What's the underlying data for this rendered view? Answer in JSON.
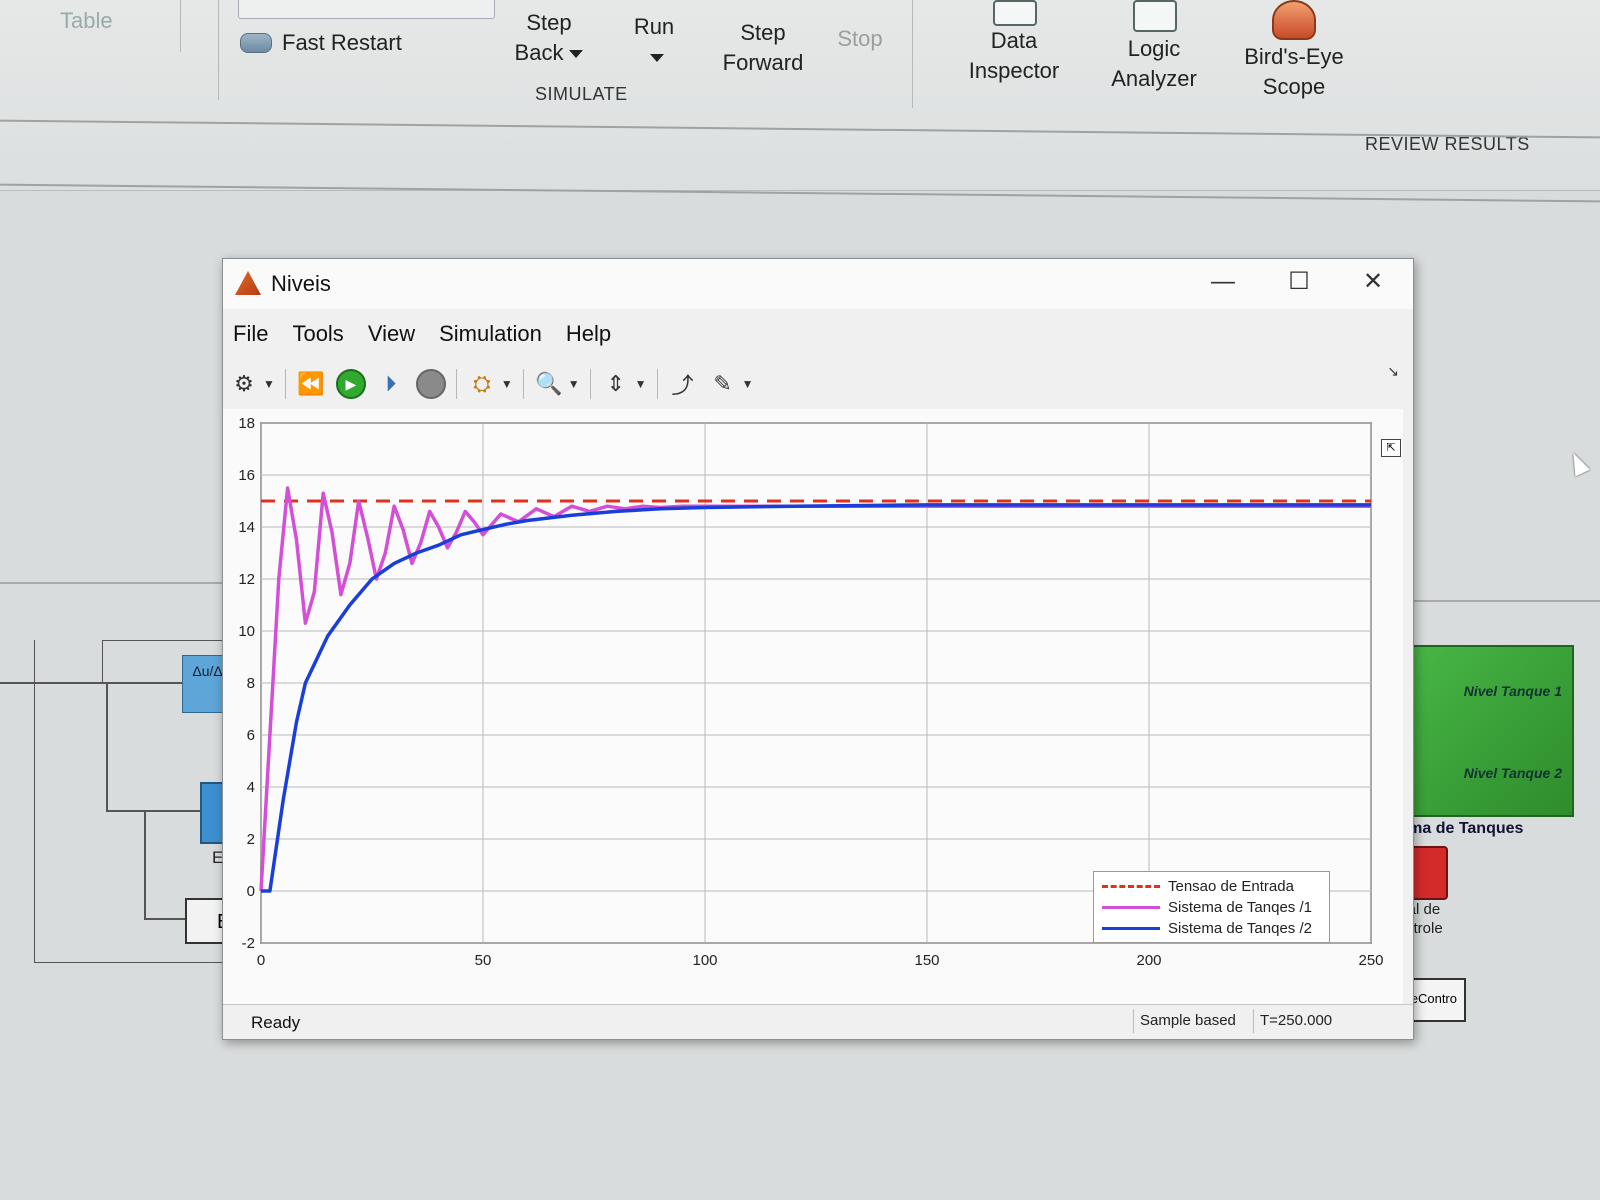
{
  "ribbon": {
    "table_label": "Table",
    "fast_restart_label": "Fast Restart",
    "step_back_label_1": "Step",
    "step_back_label_2": "Back",
    "run_label": "Run",
    "step_forward_label_1": "Step",
    "step_forward_label_2": "Forward",
    "stop_label": "Stop",
    "simulate_group_label": "SIMULATE",
    "data_inspector_label_1": "Data",
    "data_inspector_label_2": "Inspector",
    "logic_analyzer_label_1": "Logic",
    "logic_analyzer_label_2": "Analyzer",
    "birds_eye_label_1": "Bird's-Eye",
    "birds_eye_label_2": "Scope",
    "review_results_group_label": "REVIEW RESULTS"
  },
  "diagram": {
    "deriv_block_label": "Δu/Δt",
    "error_label_1": "Erro",
    "error_label_2": "Err",
    "tanques_port_1": "Nivel Tanque 1",
    "tanques_port_2": "Nivel Tanque 2",
    "tanques_caption": "stema de Tanques",
    "sinal_caption_1": "Sinal de",
    "sinal_caption_2": "Controle",
    "sinal_block_label": "naiDeContro"
  },
  "scope": {
    "title": "Niveis",
    "menu": [
      "File",
      "Tools",
      "View",
      "Simulation",
      "Help"
    ],
    "status": "Ready",
    "status_mode": "Sample based",
    "status_time": "T=250.000"
  },
  "chart_data": {
    "type": "line",
    "xlim": [
      0,
      250
    ],
    "ylim": [
      -2,
      18
    ],
    "x_ticks": [
      0,
      50,
      100,
      150,
      200,
      250
    ],
    "y_ticks": [
      -2,
      0,
      2,
      4,
      6,
      8,
      10,
      12,
      14,
      16,
      18
    ],
    "grid": true,
    "legend_position": "bottom-right",
    "series": [
      {
        "name": "Tensao de Entrada",
        "color": "#e0301e",
        "style": "dashed",
        "x": [
          0,
          250
        ],
        "y": [
          15,
          15
        ]
      },
      {
        "name": "Sistema de Tanqes /1",
        "color": "#d44fd8",
        "style": "solid",
        "x": [
          0,
          2,
          4,
          6,
          8,
          10,
          12,
          14,
          16,
          18,
          20,
          22,
          24,
          26,
          28,
          30,
          32,
          34,
          36,
          38,
          40,
          42,
          44,
          46,
          48,
          50,
          54,
          58,
          62,
          66,
          70,
          74,
          78,
          82,
          86,
          90,
          95,
          100,
          110,
          120,
          130,
          140,
          150,
          160,
          180,
          200,
          220,
          250
        ],
        "y": [
          0,
          6,
          12,
          15.5,
          13.5,
          10.3,
          11.5,
          15.3,
          13.8,
          11.4,
          12.6,
          15.0,
          13.6,
          12.0,
          13.0,
          14.8,
          13.9,
          12.6,
          13.4,
          14.6,
          14.0,
          13.2,
          13.8,
          14.6,
          14.2,
          13.7,
          14.5,
          14.2,
          14.7,
          14.4,
          14.8,
          14.6,
          14.8,
          14.7,
          14.8,
          14.75,
          14.8,
          14.8,
          14.8,
          14.8,
          14.8,
          14.8,
          14.8,
          14.8,
          14.8,
          14.8,
          14.8,
          14.8
        ]
      },
      {
        "name": "Sistema de Tanqes /2",
        "color": "#1a3ed8",
        "style": "solid",
        "x": [
          0,
          2,
          5,
          8,
          10,
          15,
          20,
          25,
          30,
          35,
          40,
          45,
          50,
          55,
          60,
          70,
          80,
          90,
          100,
          120,
          150,
          200,
          250
        ],
        "y": [
          0,
          0,
          3.5,
          6.5,
          8.0,
          9.8,
          11.0,
          12.0,
          12.6,
          13.0,
          13.3,
          13.7,
          13.9,
          14.1,
          14.25,
          14.45,
          14.6,
          14.7,
          14.75,
          14.8,
          14.85,
          14.85,
          14.85
        ]
      }
    ]
  }
}
